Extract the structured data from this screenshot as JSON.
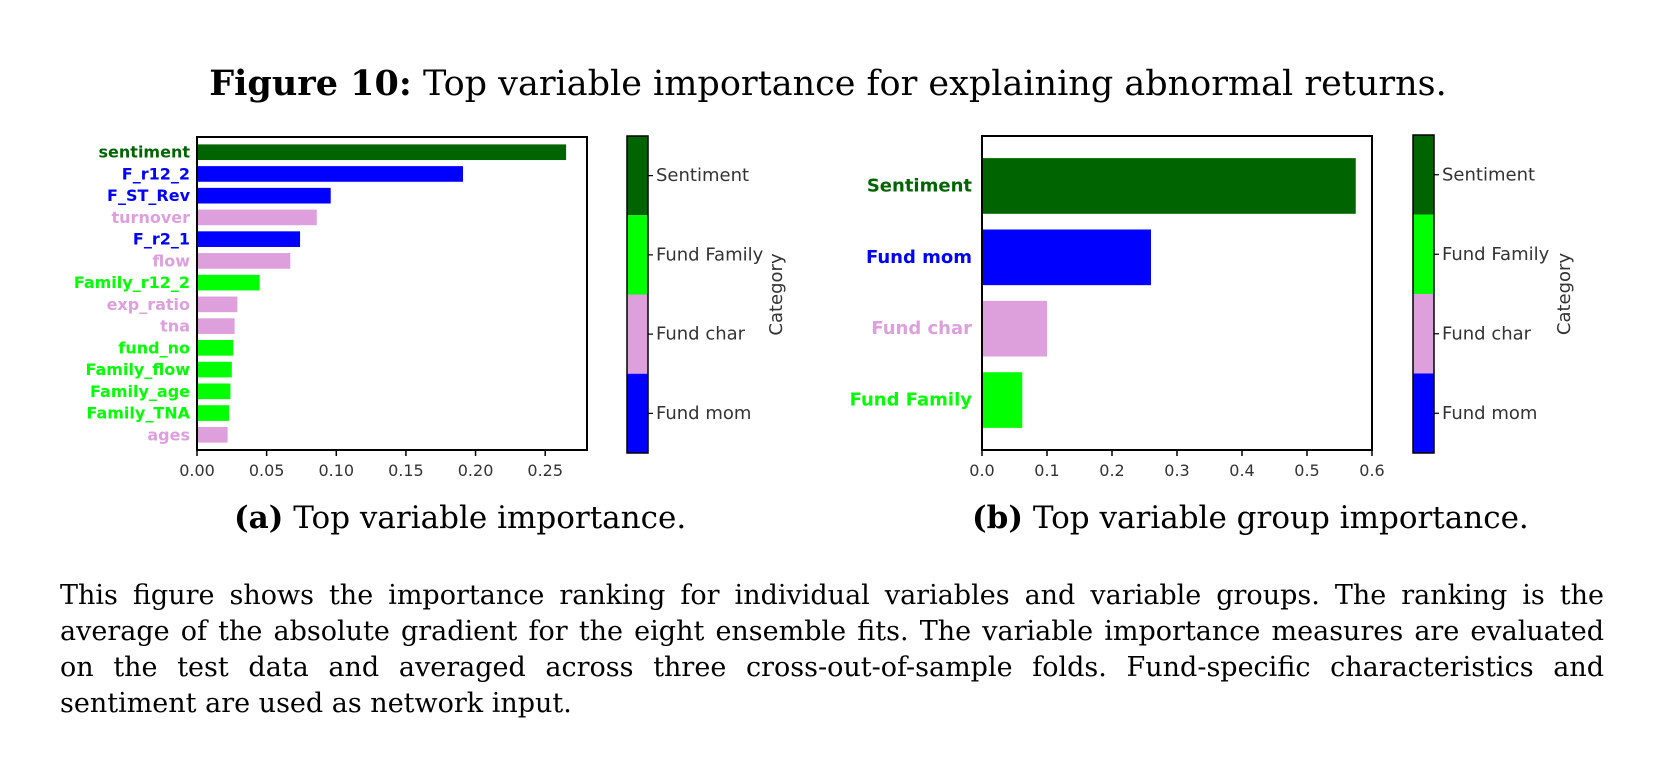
{
  "figure": {
    "label": "Figure 10:",
    "title": "Top variable importance for explaining abnormal returns.",
    "caption": "This figure shows the importance ranking for individual variables and variable groups. The ranking is the average of the absolute gradient for the eight ensemble fits. The variable importance measures are evaluated on the test data and averaged across three cross-out-of-sample folds. Fund-specific characteristics and sentiment are used as network input."
  },
  "category_colors": {
    "Sentiment": "#006400",
    "Fund Family": "#00ff00",
    "Fund char": "#dda0dd",
    "Fund mom": "#0000ff"
  },
  "subcaptions": {
    "a": {
      "label": "(a)",
      "text": "Top variable importance."
    },
    "b": {
      "label": "(b)",
      "text": "Top variable group importance."
    }
  },
  "chart_data": [
    {
      "type": "bar",
      "orientation": "horizontal",
      "categories": [
        "sentiment",
        "F_r12_2",
        "F_ST_Rev",
        "turnover",
        "F_r2_1",
        "flow",
        "Family_r12_2",
        "exp_ratio",
        "tna",
        "fund_no",
        "Family_flow",
        "Family_age",
        "Family_TNA",
        "ages"
      ],
      "values": [
        0.265,
        0.191,
        0.096,
        0.086,
        0.074,
        0.067,
        0.045,
        0.029,
        0.027,
        0.026,
        0.025,
        0.024,
        0.023,
        0.022
      ],
      "groups": [
        "Sentiment",
        "Fund mom",
        "Fund mom",
        "Fund char",
        "Fund mom",
        "Fund char",
        "Fund Family",
        "Fund char",
        "Fund char",
        "Fund Family",
        "Fund Family",
        "Fund Family",
        "Fund Family",
        "Fund char"
      ],
      "xlim": [
        0,
        0.28
      ],
      "xticks": [
        "0.00",
        "0.05",
        "0.10",
        "0.15",
        "0.20",
        "0.25"
      ],
      "xtick_values": [
        0,
        0.05,
        0.1,
        0.15,
        0.2,
        0.25
      ],
      "colorbar": {
        "title": "Category",
        "labels": [
          "Sentiment",
          "Fund Family",
          "Fund char",
          "Fund mom"
        ]
      }
    },
    {
      "type": "bar",
      "orientation": "horizontal",
      "categories": [
        "Sentiment",
        "Fund mom",
        "Fund char",
        "Fund Family"
      ],
      "values": [
        0.575,
        0.26,
        0.1,
        0.062
      ],
      "groups": [
        "Sentiment",
        "Fund mom",
        "Fund char",
        "Fund Family"
      ],
      "xlim": [
        0,
        0.6
      ],
      "xticks": [
        "0.0",
        "0.1",
        "0.2",
        "0.3",
        "0.4",
        "0.5",
        "0.6"
      ],
      "xtick_values": [
        0,
        0.1,
        0.2,
        0.3,
        0.4,
        0.5,
        0.6
      ],
      "colorbar": {
        "title": "Category",
        "labels": [
          "Sentiment",
          "Fund Family",
          "Fund char",
          "Fund mom"
        ]
      }
    }
  ]
}
